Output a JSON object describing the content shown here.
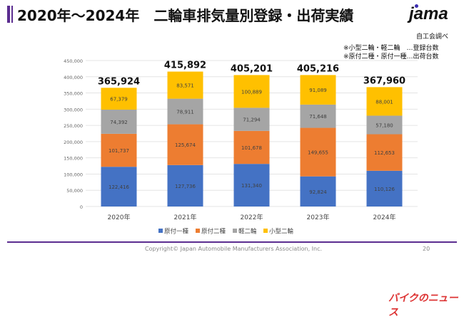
{
  "header": {
    "title": "2020年～2024年　二輪車排気量別登録・出荷実績",
    "logo": "jama",
    "source": "自工会調べ",
    "notes": [
      "※小型二輪・軽二輪　…登録台数",
      "※原付二種・原付一種…出荷台数"
    ]
  },
  "footer": {
    "copyright": "Copyright© Japan Automobile Manufacturers Association, Inc.",
    "page": "20",
    "watermark": "バイクのニュース"
  },
  "chart_data": {
    "type": "bar",
    "stacked": true,
    "categories": [
      "2020年",
      "2021年",
      "2022年",
      "2023年",
      "2024年"
    ],
    "series": [
      {
        "name": "原付一種",
        "color": "#4472c4",
        "values": [
          122416,
          127736,
          131340,
          92824,
          110126
        ]
      },
      {
        "name": "原付二種",
        "color": "#ed7d31",
        "values": [
          101737,
          125674,
          101678,
          149655,
          112653
        ]
      },
      {
        "name": "軽二輪",
        "color": "#a5a5a5",
        "values": [
          74392,
          78911,
          71294,
          71648,
          57180
        ]
      },
      {
        "name": "小型二輪",
        "color": "#ffc000",
        "values": [
          67379,
          83571,
          100889,
          91089,
          88001
        ]
      }
    ],
    "totals": [
      "365,924",
      "415,892",
      "405,201",
      "405,216",
      "367,960"
    ],
    "ylim": [
      0,
      450000
    ],
    "yticks": [
      "0",
      "50,000",
      "100,000",
      "150,000",
      "200,000",
      "250,000",
      "300,000",
      "350,000",
      "400,000",
      "450,000"
    ],
    "grid": true,
    "legend": "bottom"
  }
}
